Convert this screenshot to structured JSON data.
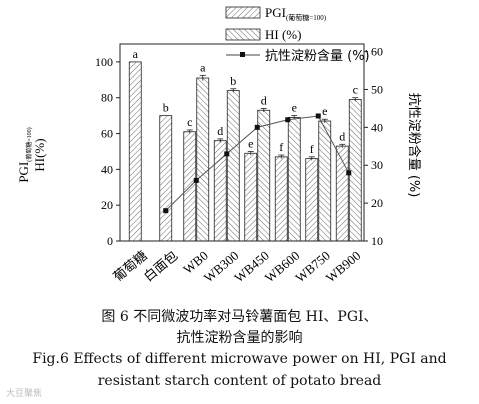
{
  "chart_data": {
    "type": "bar",
    "categories": [
      "葡萄糖",
      "白面包",
      "WB0",
      "WB300",
      "WB450",
      "WB600",
      "WB750",
      "WB900"
    ],
    "series": [
      {
        "name": "PGI",
        "name_sub": "(葡萄糖=100)",
        "values": [
          100,
          70,
          61,
          56,
          49,
          47,
          46,
          53
        ],
        "errors": [
          0,
          0,
          1,
          1,
          1,
          1,
          1,
          1
        ],
        "letters": [
          "a",
          "b",
          "c",
          "d",
          "e",
          "f",
          "f",
          "d"
        ],
        "fill": "hatch-left"
      },
      {
        "name": "HI (%)",
        "values": [
          null,
          null,
          91,
          84,
          73,
          69,
          67,
          79
        ],
        "errors": [
          0,
          0,
          1.5,
          1,
          1,
          1,
          1,
          1
        ],
        "letters": [
          "",
          "",
          "a",
          "b",
          "d",
          "e",
          "e",
          "c"
        ],
        "fill": "hatch-right"
      },
      {
        "name": "抗性淀粉含量 (%)",
        "axis": "right",
        "type": "line",
        "values": [
          null,
          18,
          26,
          33,
          40,
          42,
          43,
          28
        ]
      }
    ],
    "y_left": {
      "label_main": "PGI",
      "label_sub": "(葡萄糖=100)",
      "label_second": "HI(%)",
      "ylim": [
        0,
        110
      ],
      "ticks": [
        "0",
        "20",
        "40",
        "60",
        "80",
        "100"
      ]
    },
    "y_right": {
      "label": "抗性淀粉含量 (%)",
      "ylim": [
        10,
        62
      ],
      "ticks": [
        "10",
        "20",
        "30",
        "40",
        "50",
        "60"
      ]
    },
    "legend_placement": "top-center",
    "grid": false
  },
  "caption": {
    "zh_line1": "图 6    不同微波功率对马铃薯面包 HI、PGI、",
    "zh_line2": "抗性淀粉含量的影响",
    "en_line1": "Fig.6    Effects of different microwave power on HI, PGI and",
    "en_line2": "resistant starch content of potato bread"
  },
  "watermark": "大豆聚焦"
}
